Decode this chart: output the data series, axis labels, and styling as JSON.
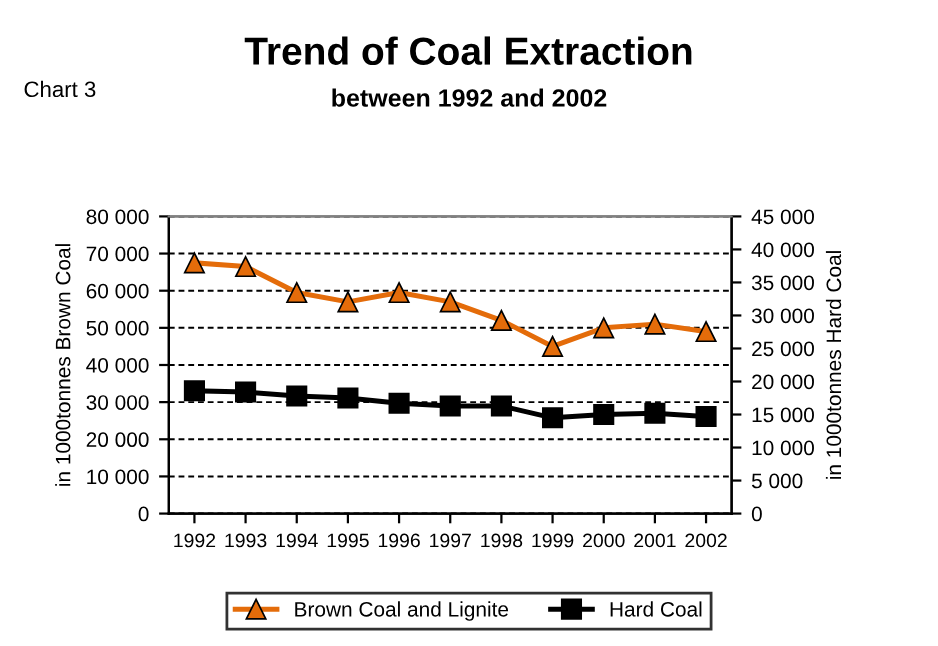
{
  "chart_data": {
    "type": "line",
    "title": "Trend of Coal Extraction",
    "subtitle": "between 1992 and 2002",
    "annotations": [
      "Chart 3"
    ],
    "ylabel": "in 1000tonnes Brown Coal",
    "y2label": "in 1000tonnes Hard Coal",
    "categories": [
      "1992",
      "1993",
      "1994",
      "1995",
      "1996",
      "1997",
      "1998",
      "1999",
      "2000",
      "2001",
      "2002"
    ],
    "series": [
      {
        "name": "Brown Coal and Lignite",
        "color": "#e46c0a",
        "marker": "triangle",
        "values": [
          67500,
          66500,
          59500,
          57000,
          59500,
          57000,
          52000,
          45000,
          50000,
          51000,
          49000
        ]
      },
      {
        "name": "Hard Coal",
        "color": "#000000",
        "marker": "square",
        "axis": "y2",
        "values": [
          18600,
          18400,
          17800,
          17500,
          16700,
          16300,
          16300,
          14500,
          15000,
          15200,
          14700
        ]
      }
    ],
    "ylim": [
      0,
      80000
    ],
    "yticks": [
      {
        "value": 0,
        "label": "0"
      },
      {
        "value": 10000,
        "label": "10 000"
      },
      {
        "value": 20000,
        "label": "20 000"
      },
      {
        "value": 30000,
        "label": "30 000"
      },
      {
        "value": 40000,
        "label": "40 000"
      },
      {
        "value": 50000,
        "label": "50 000"
      },
      {
        "value": 60000,
        "label": "60 000"
      },
      {
        "value": 70000,
        "label": "70 000"
      },
      {
        "value": 80000,
        "label": "80 000"
      }
    ],
    "y2lim": [
      0,
      45000
    ],
    "y2ticks": [
      {
        "value": 0,
        "label": "0"
      },
      {
        "value": 5000,
        "label": "5 000"
      },
      {
        "value": 10000,
        "label": "10 000"
      },
      {
        "value": 15000,
        "label": "15 000"
      },
      {
        "value": 20000,
        "label": "20 000"
      },
      {
        "value": 25000,
        "label": "25 000"
      },
      {
        "value": 30000,
        "label": "30 000"
      },
      {
        "value": 35000,
        "label": "35 000"
      },
      {
        "value": 40000,
        "label": "40 000"
      },
      {
        "value": 45000,
        "label": "45 000"
      }
    ],
    "grid": "y",
    "legend": "bottom",
    "line_style": "solid"
  }
}
